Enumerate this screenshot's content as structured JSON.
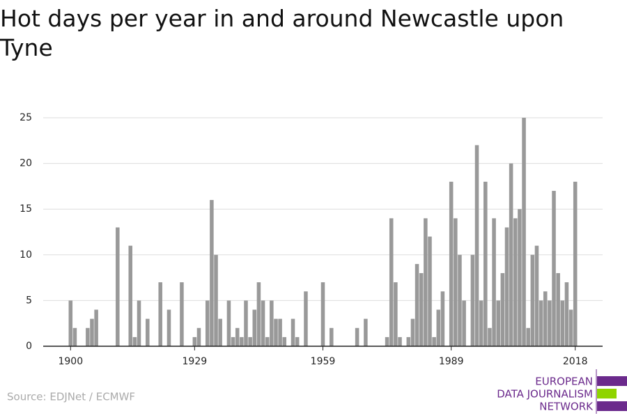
{
  "chart_data": {
    "type": "bar",
    "title": "Hot days per year in and around Newcastle upon Tyne",
    "source": "Source: EDJNet / ECMWF",
    "logo": [
      "EUROPEAN",
      "DATA JOURNALISM",
      "NETWORK"
    ],
    "color": "#999999",
    "x": [
      1900,
      1901,
      1902,
      1903,
      1904,
      1905,
      1906,
      1907,
      1908,
      1909,
      1910,
      1911,
      1912,
      1913,
      1914,
      1915,
      1916,
      1917,
      1918,
      1919,
      1920,
      1921,
      1922,
      1923,
      1924,
      1925,
      1926,
      1927,
      1928,
      1929,
      1930,
      1931,
      1932,
      1933,
      1934,
      1935,
      1936,
      1937,
      1938,
      1939,
      1940,
      1941,
      1942,
      1943,
      1944,
      1945,
      1946,
      1947,
      1948,
      1949,
      1950,
      1951,
      1952,
      1953,
      1954,
      1955,
      1956,
      1957,
      1958,
      1959,
      1960,
      1961,
      1962,
      1963,
      1964,
      1965,
      1966,
      1967,
      1968,
      1969,
      1970,
      1971,
      1972,
      1973,
      1974,
      1975,
      1976,
      1977,
      1978,
      1979,
      1980,
      1981,
      1982,
      1983,
      1984,
      1985,
      1986,
      1987,
      1988,
      1989,
      1990,
      1991,
      1992,
      1993,
      1994,
      1995,
      1996,
      1997,
      1998,
      1999,
      2000,
      2001,
      2002,
      2003,
      2004,
      2005,
      2006,
      2007,
      2008,
      2009,
      2010,
      2011,
      2012,
      2013,
      2014,
      2015,
      2016,
      2017,
      2018
    ],
    "values": [
      5,
      2,
      0,
      0,
      2,
      3,
      4,
      0,
      0,
      0,
      0,
      13,
      0,
      0,
      11,
      1,
      5,
      0,
      3,
      0,
      0,
      7,
      0,
      4,
      0,
      0,
      7,
      0,
      0,
      1,
      2,
      0,
      5,
      16,
      10,
      3,
      0,
      5,
      1,
      2,
      1,
      5,
      1,
      4,
      7,
      5,
      1,
      5,
      3,
      3,
      1,
      0,
      3,
      1,
      0,
      6,
      0,
      0,
      0,
      7,
      0,
      2,
      0,
      0,
      0,
      0,
      0,
      2,
      0,
      3,
      0,
      0,
      0,
      0,
      1,
      14,
      7,
      1,
      0,
      1,
      3,
      9,
      8,
      14,
      12,
      1,
      4,
      6,
      0,
      18,
      14,
      10,
      5,
      0,
      10,
      22,
      5,
      18,
      2,
      14,
      5,
      8,
      13,
      20,
      14,
      15,
      25,
      2,
      10,
      11,
      5,
      6,
      5,
      17,
      8,
      5,
      7,
      4,
      18
    ],
    "xlim": [
      1893.6,
      2024.4
    ],
    "xticks": [
      1900,
      1929,
      1959,
      1989,
      2018
    ],
    "ylim": [
      0,
      25
    ],
    "yticks": [
      0,
      5,
      10,
      15,
      20,
      25
    ],
    "grid": true
  }
}
